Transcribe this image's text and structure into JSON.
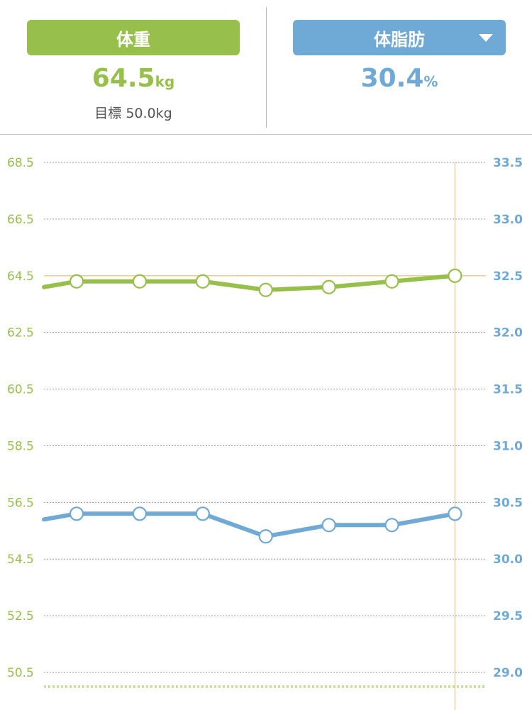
{
  "header": {
    "weight_tab": "体重",
    "fat_tab": "体脂肪",
    "fat_tab_icon": "caret-down-icon",
    "weight_value": "64.5",
    "weight_unit": "kg",
    "fat_value": "30.4",
    "fat_unit": "%",
    "goal_text": "目標 50.0kg"
  },
  "colors": {
    "weight": "#97bf4c",
    "fat": "#6fa9d5",
    "grid": "#9a9a9a",
    "highlight": "#e8c78a",
    "goal_line": "#c9df9e"
  },
  "chart_data": {
    "type": "line",
    "y_left": {
      "ticks": [
        "68.5",
        "66.5",
        "64.5",
        "62.5",
        "60.5",
        "58.5",
        "56.5",
        "54.5",
        "52.5",
        "50.5"
      ],
      "range": [
        50.5,
        68.5
      ]
    },
    "y_right": {
      "ticks": [
        "33.5",
        "33.0",
        "32.5",
        "32.0",
        "31.5",
        "31.0",
        "30.5",
        "30.0",
        "29.5",
        "29.0"
      ],
      "range": [
        29.0,
        33.5
      ]
    },
    "grid": true,
    "goal_weight": 50.0,
    "highlight_weight": 64.5,
    "series": [
      {
        "axis": "left",
        "values": [
          64.1,
          64.3,
          64.3,
          64.3,
          64.0,
          64.1,
          64.3,
          64.5
        ]
      },
      {
        "axis": "right",
        "values": [
          30.35,
          30.4,
          30.4,
          30.4,
          30.2,
          30.3,
          30.3,
          30.4
        ]
      }
    ]
  }
}
